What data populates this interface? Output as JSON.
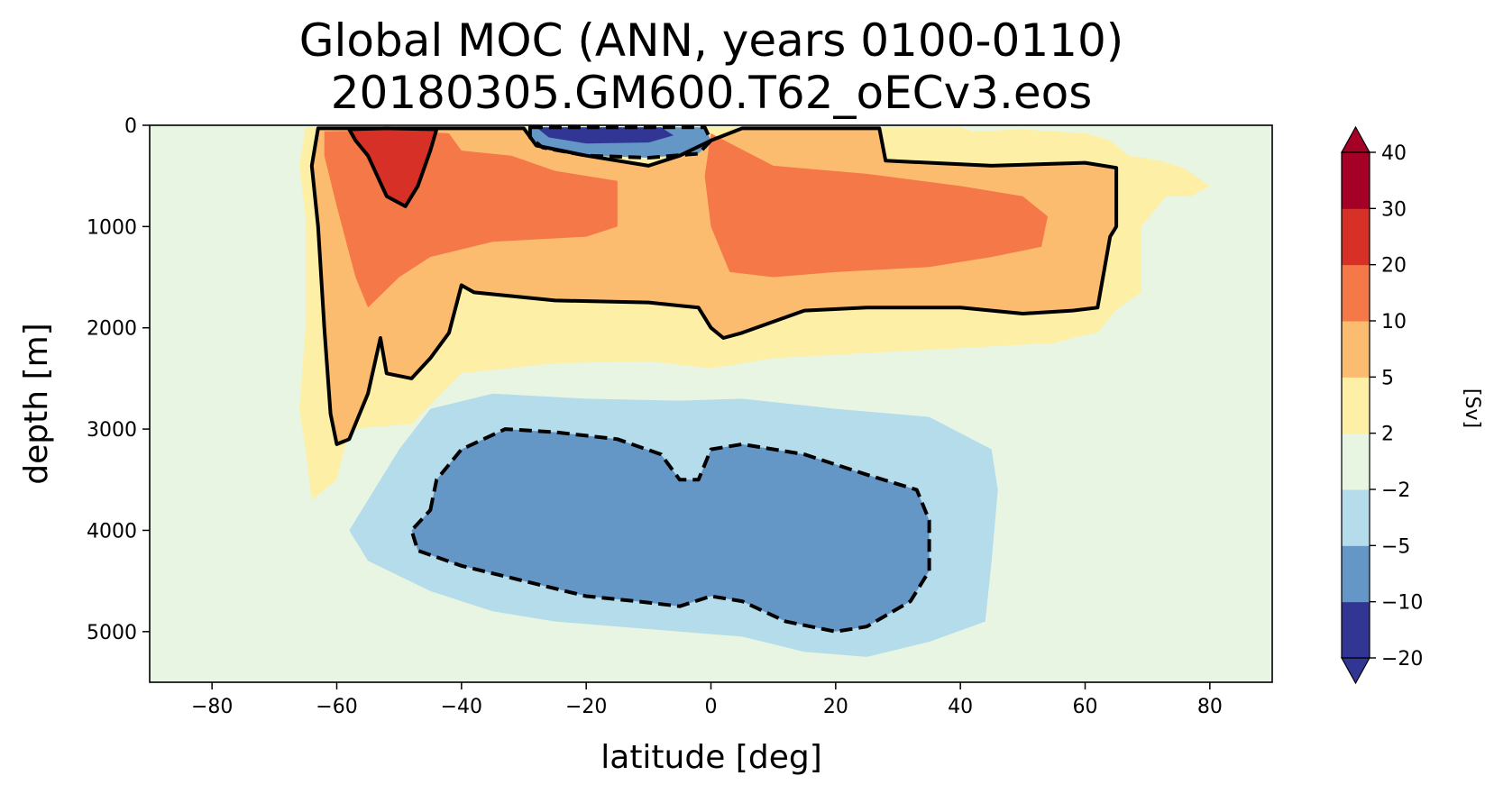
{
  "chart_data": {
    "type": "contourf",
    "title_line1": "Global MOC (ANN, years 0100-0110)",
    "title_line2": "20180305.GM600.T62_oECv3.eos",
    "xlabel": "latitude [deg]",
    "ylabel": "depth [m]",
    "xlim": [
      -90,
      90
    ],
    "ylim": [
      5500,
      0
    ],
    "xticks": [
      -80,
      -60,
      -40,
      -20,
      0,
      20,
      40,
      60,
      80
    ],
    "xtick_labels": [
      "−80",
      "−60",
      "−40",
      "−20",
      "0",
      "20",
      "40",
      "60",
      "80"
    ],
    "yticks": [
      0,
      1000,
      2000,
      3000,
      4000,
      5000
    ],
    "ytick_labels": [
      "0",
      "1000",
      "2000",
      "3000",
      "4000",
      "5000"
    ],
    "colorbar": {
      "label": "[Sv]",
      "levels": [
        -20,
        -10,
        -5,
        -2,
        2,
        5,
        10,
        20,
        30,
        40
      ],
      "level_labels": [
        "−20",
        "−10",
        "−5",
        "−2",
        "2",
        "5",
        "10",
        "20",
        "30",
        "40"
      ],
      "colors": [
        "#313695",
        "#6497c6",
        "#b4dcea",
        "#e9f5e3",
        "#fdefa6",
        "#fcbc6f",
        "#f47848",
        "#d73027",
        "#a50026"
      ],
      "under_color": "#313695",
      "over_color": "#a50026",
      "extend": "both"
    },
    "contour_lines": [
      {
        "level": 5,
        "style": "solid"
      },
      {
        "level": 20,
        "style": "solid"
      },
      {
        "level": -5,
        "style": "dashed"
      }
    ],
    "regions": [
      {
        "name": "upper-cell-2sv",
        "level": 2,
        "color": "#fdefa6",
        "boundary": [
          [
            -65,
            20
          ],
          [
            -50,
            20
          ],
          [
            -35,
            20
          ],
          [
            -20,
            20
          ],
          [
            -5,
            20
          ],
          [
            5,
            20
          ],
          [
            25,
            20
          ],
          [
            40,
            20
          ],
          [
            42,
            60
          ],
          [
            50,
            40
          ],
          [
            60,
            80
          ],
          [
            64,
            150
          ],
          [
            67,
            300
          ],
          [
            72,
            350
          ],
          [
            76,
            430
          ],
          [
            80,
            600
          ],
          [
            77,
            700
          ],
          [
            73,
            700
          ],
          [
            69,
            1000
          ],
          [
            69,
            1650
          ],
          [
            65,
            1820
          ],
          [
            62,
            2050
          ],
          [
            58,
            2100
          ],
          [
            55,
            2150
          ],
          [
            40,
            2200
          ],
          [
            25,
            2250
          ],
          [
            10,
            2300
          ],
          [
            0,
            2400
          ],
          [
            -10,
            2330
          ],
          [
            -25,
            2350
          ],
          [
            -40,
            2450
          ],
          [
            -48,
            2950
          ],
          [
            -58,
            3000
          ],
          [
            -60,
            3500
          ],
          [
            -64,
            3700
          ],
          [
            -65,
            3200
          ],
          [
            -66,
            2800
          ],
          [
            -65,
            2000
          ],
          [
            -65,
            900
          ],
          [
            -66,
            400
          ]
        ]
      },
      {
        "name": "upper-cell-5sv",
        "level": 5,
        "color": "#fcbc6f",
        "boundary": [
          [
            -63,
            30
          ],
          [
            -58,
            30
          ],
          [
            -45,
            30
          ],
          [
            -30,
            30
          ],
          [
            -28,
            200
          ],
          [
            -20,
            300
          ],
          [
            -10,
            400
          ],
          [
            -5,
            300
          ],
          [
            0,
            150
          ],
          [
            5,
            30
          ],
          [
            20,
            30
          ],
          [
            27,
            30
          ],
          [
            28,
            350
          ],
          [
            45,
            400
          ],
          [
            60,
            370
          ],
          [
            65,
            420
          ],
          [
            65,
            1000
          ],
          [
            64,
            1100
          ],
          [
            63,
            1450
          ],
          [
            62,
            1800
          ],
          [
            58,
            1830
          ],
          [
            50,
            1860
          ],
          [
            40,
            1800
          ],
          [
            25,
            1800
          ],
          [
            15,
            1830
          ],
          [
            5,
            2050
          ],
          [
            2,
            2100
          ],
          [
            0,
            2000
          ],
          [
            -2,
            1800
          ],
          [
            -10,
            1750
          ],
          [
            -25,
            1730
          ],
          [
            -38,
            1650
          ],
          [
            -40,
            1580
          ],
          [
            -42,
            2050
          ],
          [
            -45,
            2300
          ],
          [
            -48,
            2500
          ],
          [
            -52,
            2450
          ],
          [
            -53,
            2100
          ],
          [
            -55,
            2650
          ],
          [
            -58,
            3100
          ],
          [
            -60,
            3150
          ],
          [
            -61,
            2850
          ],
          [
            -62,
            2000
          ],
          [
            -63,
            1000
          ],
          [
            -64,
            400
          ]
        ]
      },
      {
        "name": "upper-cell-10sv-south",
        "level": 10,
        "color": "#f47848",
        "boundary": [
          [
            -62,
            60
          ],
          [
            -50,
            50
          ],
          [
            -42,
            80
          ],
          [
            -40,
            250
          ],
          [
            -32,
            300
          ],
          [
            -25,
            450
          ],
          [
            -15,
            550
          ],
          [
            -15,
            1000
          ],
          [
            -20,
            1100
          ],
          [
            -35,
            1150
          ],
          [
            -45,
            1300
          ],
          [
            -50,
            1500
          ],
          [
            -55,
            1800
          ],
          [
            -57,
            1500
          ],
          [
            -60,
            800
          ],
          [
            -62,
            300
          ]
        ]
      },
      {
        "name": "upper-cell-10sv-north",
        "level": 10,
        "color": "#f47848",
        "boundary": [
          [
            0,
            80
          ],
          [
            10,
            400
          ],
          [
            25,
            480
          ],
          [
            40,
            600
          ],
          [
            50,
            700
          ],
          [
            54,
            900
          ],
          [
            53,
            1200
          ],
          [
            45,
            1300
          ],
          [
            35,
            1400
          ],
          [
            20,
            1450
          ],
          [
            10,
            1500
          ],
          [
            3,
            1450
          ],
          [
            0,
            1000
          ],
          [
            -1,
            500
          ]
        ]
      },
      {
        "name": "upper-cell-20sv",
        "level": 20,
        "color": "#d73027",
        "boundary": [
          [
            -58,
            40
          ],
          [
            -52,
            30
          ],
          [
            -44,
            40
          ],
          [
            -45,
            250
          ],
          [
            -47,
            600
          ],
          [
            -49,
            800
          ],
          [
            -52,
            700
          ],
          [
            -55,
            300
          ],
          [
            -57,
            150
          ]
        ]
      },
      {
        "name": "surface-negative-cell",
        "level": -5,
        "color": "#6497c6",
        "boundary": [
          [
            -29,
            20
          ],
          [
            -15,
            20
          ],
          [
            -1,
            20
          ],
          [
            0,
            150
          ],
          [
            -2,
            280
          ],
          [
            -10,
            320
          ],
          [
            -20,
            300
          ],
          [
            -27,
            220
          ],
          [
            -29,
            120
          ]
        ]
      },
      {
        "name": "surface-core-negative",
        "level": -10,
        "color": "#313695",
        "boundary": [
          [
            -28,
            20
          ],
          [
            -8,
            20
          ],
          [
            -6,
            100
          ],
          [
            -10,
            170
          ],
          [
            -20,
            180
          ],
          [
            -26,
            120
          ]
        ]
      },
      {
        "name": "abyssal-cell-2sv",
        "level": -2,
        "color": "#b4dcea",
        "boundary": [
          [
            -55,
            3700
          ],
          [
            -50,
            3200
          ],
          [
            -45,
            2800
          ],
          [
            -35,
            2650
          ],
          [
            -20,
            2700
          ],
          [
            -5,
            2720
          ],
          [
            5,
            2700
          ],
          [
            20,
            2800
          ],
          [
            35,
            2880
          ],
          [
            45,
            3200
          ],
          [
            46,
            3600
          ],
          [
            45,
            4300
          ],
          [
            44,
            4900
          ],
          [
            35,
            5100
          ],
          [
            25,
            5250
          ],
          [
            15,
            5200
          ],
          [
            5,
            5050
          ],
          [
            -5,
            5000
          ],
          [
            -15,
            4950
          ],
          [
            -25,
            4900
          ],
          [
            -35,
            4800
          ],
          [
            -45,
            4600
          ],
          [
            -55,
            4300
          ],
          [
            -58,
            4000
          ]
        ]
      },
      {
        "name": "abyssal-cell-5sv",
        "level": -5,
        "color": "#6497c6",
        "boundary": [
          [
            -45,
            3800
          ],
          [
            -44,
            3500
          ],
          [
            -40,
            3200
          ],
          [
            -33,
            3000
          ],
          [
            -25,
            3030
          ],
          [
            -15,
            3100
          ],
          [
            -8,
            3250
          ],
          [
            -5,
            3500
          ],
          [
            -2,
            3500
          ],
          [
            0,
            3200
          ],
          [
            5,
            3150
          ],
          [
            15,
            3250
          ],
          [
            25,
            3450
          ],
          [
            33,
            3600
          ],
          [
            35,
            3900
          ],
          [
            35,
            4400
          ],
          [
            32,
            4700
          ],
          [
            25,
            4950
          ],
          [
            20,
            5000
          ],
          [
            12,
            4900
          ],
          [
            5,
            4700
          ],
          [
            0,
            4650
          ],
          [
            -5,
            4750
          ],
          [
            -12,
            4700
          ],
          [
            -20,
            4650
          ],
          [
            -30,
            4500
          ],
          [
            -40,
            4350
          ],
          [
            -47,
            4200
          ],
          [
            -48,
            4000
          ]
        ]
      }
    ],
    "annotations": [
      "[Sv]"
    ]
  }
}
